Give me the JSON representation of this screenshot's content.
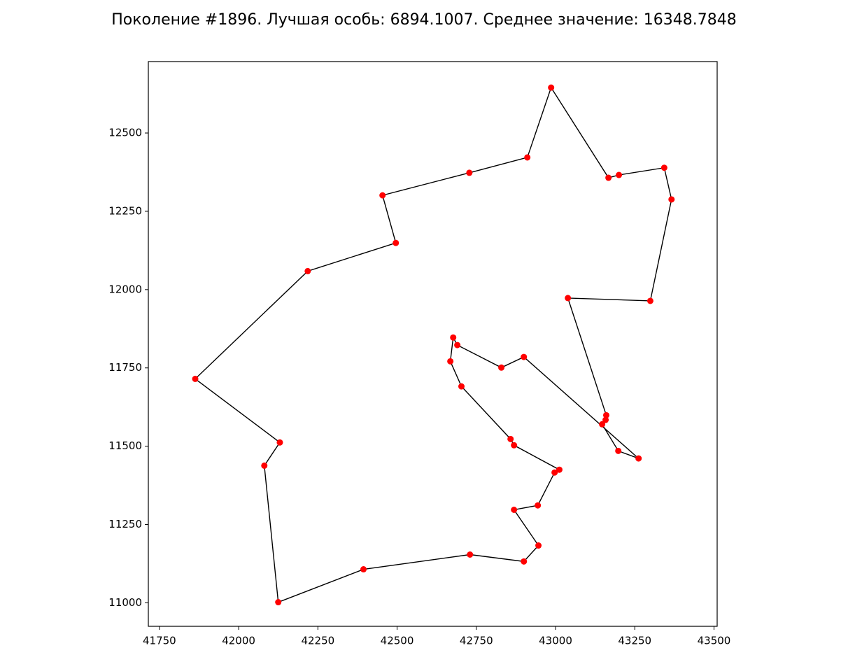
{
  "chart_data": {
    "type": "route",
    "title": "Поколение #1896. Лучшая особь: 6894.1007. Среднее значение: 16348.7848",
    "x": [
      42125,
      42394,
      42730,
      42900,
      42946,
      42869,
      42944,
      42997,
      43012,
      42869,
      42858,
      42703,
      42668,
      42677,
      42690,
      42829,
      42900,
      43262,
      43198,
      43147,
      43158,
      43160,
      43039,
      43299,
      43366,
      43343,
      43200,
      43167,
      42986,
      42911,
      42728,
      42454,
      42496,
      42218,
      41863,
      42130,
      42081
    ],
    "y": [
      11002,
      11107,
      11154,
      11132,
      11183,
      11297,
      11311,
      11416,
      11425,
      11503,
      11523,
      11691,
      11771,
      11847,
      11823,
      11751,
      11785,
      11461,
      11485,
      11570,
      11584,
      11599,
      11973,
      11964,
      12288,
      12389,
      12366,
      12357,
      12645,
      12422,
      12373,
      12301,
      12149,
      12059,
      11715,
      11512,
      11438
    ],
    "closed": true,
    "line_color": "#000000",
    "point_color": "#ff0000",
    "xlim": [
      41715,
      43510
    ],
    "ylim": [
      10925,
      12728
    ],
    "xticks": [
      41750,
      42000,
      42250,
      42500,
      42750,
      43000,
      43250,
      43500
    ],
    "yticks": [
      11000,
      11250,
      11500,
      11750,
      12000,
      12250,
      12500
    ]
  }
}
